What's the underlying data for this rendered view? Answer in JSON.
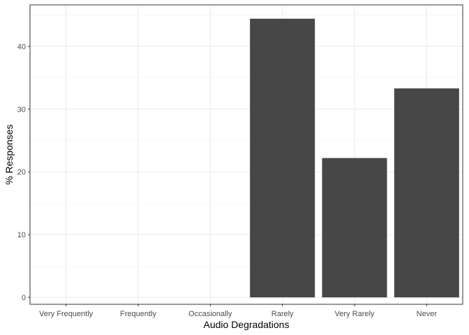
{
  "chart_data": {
    "type": "bar",
    "categories": [
      "Very Frequently",
      "Frequently",
      "Occasionally",
      "Rarely",
      "Very Rarely",
      "Never"
    ],
    "values": [
      0,
      0,
      0,
      44.4,
      22.2,
      33.3
    ],
    "xlabel": "Audio Degradations",
    "ylabel": "% Responses",
    "ylim": [
      -1.1,
      46.6
    ],
    "yticks": [
      0,
      10,
      20,
      30,
      40
    ],
    "ytick_labels": [
      "0",
      "10",
      "20",
      "30",
      "40"
    ],
    "grid": true,
    "legend": "none",
    "colors": {
      "bar": "#474747",
      "panel_border": "#333333",
      "grid_major": "#ebebeb",
      "grid_minor": "#f3f3f3",
      "tick_text": "#4d4d4d"
    }
  }
}
